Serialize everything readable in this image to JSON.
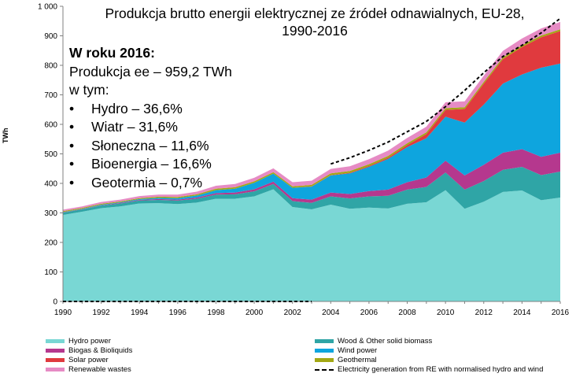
{
  "chart_data": {
    "type": "area",
    "title": "Produkcja brutto energii elektrycznej ze źródeł odnawialnych, EU-28,",
    "subtitle": "1990-2016",
    "ylabel": "TWh",
    "xlabel": "",
    "ylim": [
      0,
      1000
    ],
    "y_ticks": [
      "0",
      "100",
      "200",
      "300",
      "400",
      "500",
      "600",
      "700",
      "800",
      "900",
      "1 000"
    ],
    "x_ticks": [
      "1990",
      "1992",
      "1994",
      "1996",
      "1998",
      "2000",
      "2002",
      "2004",
      "2006",
      "2008",
      "2010",
      "2012",
      "2014",
      "2016"
    ],
    "x": [
      1990,
      1991,
      1992,
      1993,
      1994,
      1995,
      1996,
      1997,
      1998,
      1999,
      2000,
      2001,
      2002,
      2003,
      2004,
      2005,
      2006,
      2007,
      2008,
      2009,
      2010,
      2011,
      2012,
      2013,
      2014,
      2015,
      2016
    ],
    "stacked": true,
    "series": [
      {
        "name": "Hydro power",
        "color": "#79D7D4",
        "values": [
          293,
          304,
          316,
          322,
          332,
          333,
          330,
          335,
          348,
          348,
          356,
          380,
          320,
          312,
          328,
          314,
          318,
          315,
          331,
          336,
          377,
          314,
          338,
          371,
          376,
          343,
          352
        ]
      },
      {
        "name": "Wood & Other solid biomass",
        "color": "#2FA5A6",
        "values": [
          8,
          8,
          9,
          10,
          10,
          11,
          12,
          13,
          14,
          15,
          17,
          18,
          20,
          22,
          28,
          35,
          38,
          43,
          48,
          52,
          60,
          65,
          70,
          75,
          80,
          85,
          88
        ]
      },
      {
        "name": "Biogas & Bioliquids",
        "color": "#B5388E",
        "values": [
          1,
          1,
          1,
          2,
          2,
          3,
          3,
          4,
          5,
          6,
          7,
          8,
          10,
          11,
          13,
          15,
          18,
          21,
          25,
          32,
          40,
          48,
          55,
          58,
          60,
          62,
          64
        ]
      },
      {
        "name": "Wind power",
        "color": "#0EA5DE",
        "values": [
          1,
          1,
          2,
          2,
          3,
          4,
          5,
          7,
          10,
          13,
          22,
          27,
          35,
          44,
          58,
          70,
          82,
          104,
          119,
          133,
          149,
          179,
          204,
          234,
          253,
          302,
          302
        ]
      },
      {
        "name": "Solar power",
        "color": "#E03A3E",
        "values": [
          0,
          0,
          0,
          0,
          0,
          0,
          0,
          0,
          0,
          0,
          0,
          0,
          0,
          1,
          1,
          2,
          3,
          4,
          7,
          14,
          23,
          46,
          71,
          83,
          93,
          103,
          110
        ]
      },
      {
        "name": "Geothermal",
        "color": "#A3A814",
        "values": [
          3,
          3,
          3,
          3,
          3,
          4,
          4,
          4,
          5,
          5,
          5,
          5,
          5,
          5,
          6,
          6,
          6,
          6,
          6,
          6,
          6,
          6,
          6,
          6,
          6,
          6,
          6
        ]
      },
      {
        "name": "Renewable wastes",
        "color": "#E68BC4",
        "values": [
          5,
          5,
          6,
          6,
          7,
          7,
          8,
          9,
          10,
          11,
          12,
          13,
          14,
          14,
          15,
          16,
          17,
          18,
          18,
          19,
          20,
          20,
          21,
          22,
          23,
          24,
          25
        ]
      }
    ],
    "line_series": {
      "name": "Electricity generation  from RE with normalised hydro and wind",
      "color": "#000000",
      "style": "dashed",
      "x": [
        1990,
        1991,
        1992,
        1993,
        1994,
        1995,
        1996,
        1997,
        1998,
        1999,
        2000,
        2001,
        2002,
        2003,
        2004,
        2005,
        2006,
        2007,
        2008,
        2009,
        2010,
        2011,
        2012,
        2013,
        2014,
        2015,
        2016
      ],
      "values": [
        0,
        0,
        0,
        0,
        0,
        0,
        0,
        0,
        0,
        0,
        0,
        0,
        0,
        0,
        466,
        487,
        512,
        540,
        575,
        610,
        660,
        715,
        775,
        830,
        868,
        910,
        959
      ]
    },
    "legend_position": "bottom",
    "grid": false
  },
  "callout": {
    "heading": "W roku 2016:",
    "line1": "Produkcja ee – 959,2 TWh",
    "line2": "w tym:",
    "bullet": "•",
    "items": [
      "Hydro – 36,6%",
      "Wiatr – 31,6%",
      "Słoneczna – 11,6%",
      "Bioenergia – 16,6%",
      "Geotermia – 0,7%"
    ]
  }
}
